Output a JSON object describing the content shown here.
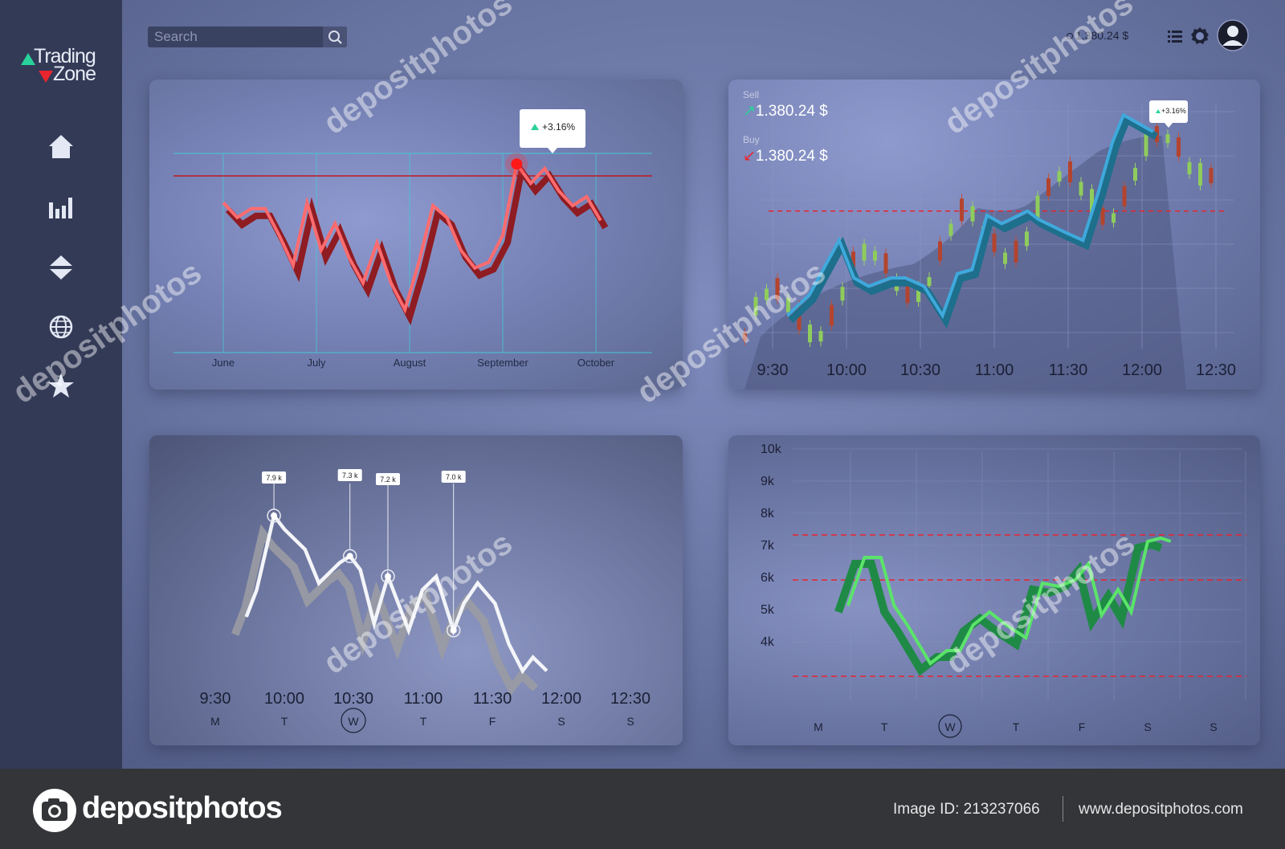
{
  "app": {
    "logo_top": "Trading",
    "logo_bottom": "Zone",
    "search_placeholder": "Search",
    "balance": "1.380.24 $",
    "colors": {
      "up": "#28d29a",
      "down": "#e8242f",
      "sidebar": "#323a56"
    }
  },
  "sidebar": {
    "items": [
      {
        "icon": "home-icon"
      },
      {
        "icon": "bar-chart-icon"
      },
      {
        "icon": "up-down-arrows-icon"
      },
      {
        "icon": "globe-icon"
      },
      {
        "icon": "star-icon"
      }
    ]
  },
  "panels": {
    "p1": {
      "tooltip": "+3.16%"
    },
    "p2": {
      "sell_label": "Sell",
      "sell_value": "1.380.24 $",
      "buy_label": "Buy",
      "buy_value": "1.380.24 $",
      "tooltip": "+3.16%"
    },
    "p3": {
      "labels": [
        "7.9 k",
        "7.3 k",
        "7.2 k",
        "7.0 k"
      ]
    },
    "p4": {}
  },
  "chart_data": [
    {
      "type": "line",
      "categories": [
        "June",
        "July",
        "August",
        "September",
        "October"
      ],
      "x": [
        0.0,
        0.15,
        0.3,
        0.45,
        0.6,
        0.75,
        0.9,
        1.05,
        1.2,
        1.35,
        1.5,
        1.65,
        1.8,
        1.95,
        2.1,
        2.25,
        2.4,
        2.55,
        2.7,
        2.85,
        3.0,
        3.15,
        3.3,
        3.45,
        3.6,
        3.75,
        3.9,
        4.05
      ],
      "values": [
        0.82,
        0.72,
        0.78,
        0.78,
        0.6,
        0.4,
        0.82,
        0.5,
        0.68,
        0.45,
        0.28,
        0.55,
        0.28,
        0.1,
        0.42,
        0.8,
        0.72,
        0.5,
        0.38,
        0.42,
        0.6,
        1.08,
        0.95,
        1.05,
        0.9,
        0.8,
        0.86,
        0.7
      ],
      "reference_line": 1.0,
      "annotation": "+3.16%"
    },
    {
      "type": "line",
      "categories": [
        "9:30",
        "10:00",
        "10:30",
        "11:00",
        "11:30",
        "12:00",
        "12:30"
      ],
      "x": [
        0.2,
        0.5,
        0.9,
        1.1,
        1.3,
        1.6,
        1.8,
        2.05,
        2.3,
        2.5,
        2.7,
        2.9,
        3.1,
        3.45,
        3.6,
        3.95,
        4.2,
        4.4,
        4.6,
        4.75,
        4.95,
        5.15
      ],
      "values": [
        0.12,
        0.22,
        0.48,
        0.3,
        0.26,
        0.3,
        0.3,
        0.26,
        0.12,
        0.32,
        0.34,
        0.6,
        0.56,
        0.62,
        0.58,
        0.52,
        0.48,
        0.7,
        0.95,
        1.08,
        1.04,
        1.0
      ],
      "reference_line": 0.62,
      "annotation": "+3.16%"
    },
    {
      "type": "line",
      "categories": [
        "9:30",
        "10:00",
        "10:30",
        "11:00",
        "11:30",
        "12:00",
        "12:30"
      ],
      "days": [
        "M",
        "T",
        "W",
        "T",
        "F",
        "S",
        "S"
      ],
      "x": [
        0.45,
        0.6,
        0.85,
        1.0,
        1.3,
        1.5,
        1.8,
        1.95,
        2.1,
        2.3,
        2.5,
        2.8,
        3.0,
        3.2,
        3.45,
        3.6,
        3.8,
        4.05,
        4.25,
        4.45,
        4.6,
        4.8
      ],
      "values": [
        6.4,
        6.8,
        7.9,
        7.7,
        7.4,
        6.9,
        7.2,
        7.3,
        7.1,
        6.3,
        7.0,
        6.2,
        6.8,
        7.0,
        6.2,
        6.6,
        6.9,
        6.6,
        6.0,
        5.6,
        5.8,
        5.6
      ],
      "labels": [
        "7.9 k",
        "7.3 k",
        "7.2 k",
        "7.0 k"
      ]
    },
    {
      "type": "line",
      "categories": [
        "M",
        "T",
        "W",
        "T",
        "F",
        "S",
        "S"
      ],
      "yticks": [
        "10k",
        "9k",
        "8k",
        "7k",
        "6k",
        "5k",
        "4k"
      ],
      "x": [
        0.45,
        0.7,
        0.95,
        1.15,
        1.35,
        1.7,
        1.95,
        2.15,
        2.35,
        2.6,
        2.85,
        3.15,
        3.4,
        3.65,
        3.9,
        4.1,
        4.3,
        4.55,
        4.75,
        5.0,
        5.2,
        5.35
      ],
      "values": [
        5.2,
        6.7,
        6.7,
        5.2,
        4.6,
        3.4,
        3.8,
        3.8,
        4.6,
        5.0,
        4.6,
        4.2,
        5.9,
        5.8,
        6.0,
        6.5,
        4.9,
        5.7,
        5.0,
        7.2,
        7.3,
        7.2
      ],
      "reference_lines": [
        7.4,
        6.0,
        3.0
      ]
    }
  ],
  "footer": {
    "brand": "depositphotos",
    "image_id": "Image ID: 213237066",
    "site": "www.depositphotos.com"
  }
}
